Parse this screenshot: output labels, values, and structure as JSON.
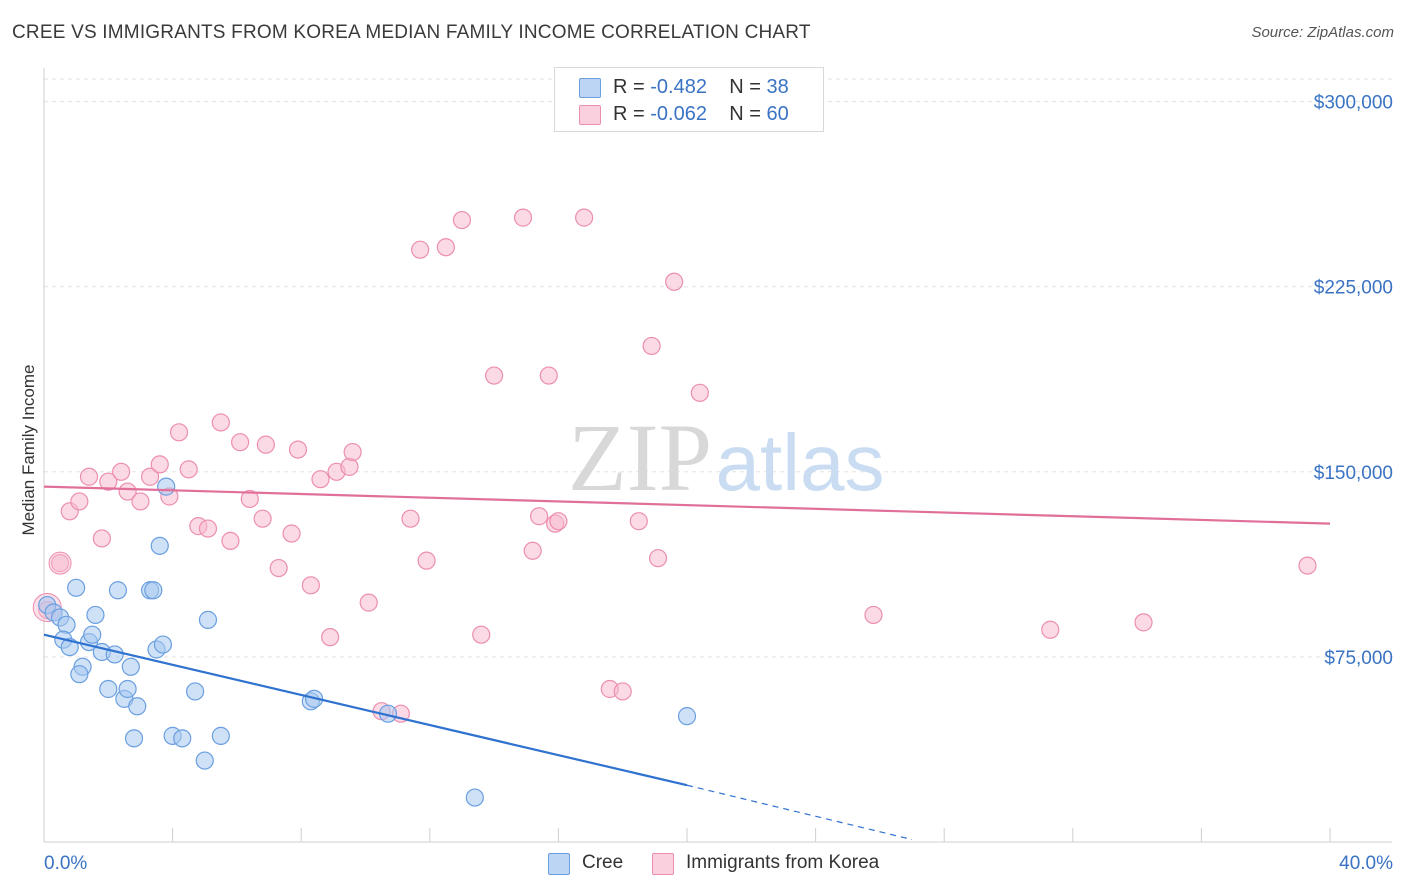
{
  "title": "CREE VS IMMIGRANTS FROM KOREA MEDIAN FAMILY INCOME CORRELATION CHART",
  "source": "Source: ZipAtlas.com",
  "colors": {
    "blue_fill": "#a8c8f0",
    "blue_stroke": "#6a9fe0",
    "blue_line": "#2f72cf",
    "pink_fill": "#f7bcd0",
    "pink_stroke": "#ec8eb0",
    "pink_line": "#e0709a",
    "tick_label": "#3a73c4",
    "grid": "#e3e3e3"
  },
  "legend": {
    "rows": [
      {
        "r_label": "R = ",
        "r_value": "-0.482",
        "n_label": "N = ",
        "n_value": "38"
      },
      {
        "r_label": "R = ",
        "r_value": "-0.062",
        "n_label": "N = ",
        "n_value": "60"
      }
    ]
  },
  "watermark": {
    "part1": "ZIP",
    "part2": "atlas"
  },
  "chart_data": {
    "type": "scatter",
    "title": "CREE VS IMMIGRANTS FROM KOREA MEDIAN FAMILY INCOME CORRELATION CHART",
    "xlabel": "",
    "ylabel": "Median Family Income",
    "xlim": [
      0,
      40
    ],
    "ylim": [
      0,
      312000
    ],
    "x_tick_labels": [
      "0.0%",
      "40.0%"
    ],
    "y_ticks": [
      75000,
      150000,
      225000,
      300000
    ],
    "y_tick_labels": [
      "$75,000",
      "$150,000",
      "$225,000",
      "$300,000"
    ],
    "grid": true,
    "legend_position": "top-center",
    "series": [
      {
        "name": "Cree",
        "color": "#a8c8f0",
        "r": -0.482,
        "n": 38,
        "trend": {
          "x0": 0,
          "y0": 84000,
          "x1": 20,
          "y1": 23000,
          "dash_to_x": 27,
          "dash_to_y": 1000
        },
        "points": [
          [
            0.1,
            96000
          ],
          [
            0.3,
            93000
          ],
          [
            0.5,
            91000
          ],
          [
            0.7,
            88000
          ],
          [
            0.6,
            82000
          ],
          [
            0.8,
            79000
          ],
          [
            1.0,
            103000
          ],
          [
            1.2,
            71000
          ],
          [
            1.1,
            68000
          ],
          [
            1.4,
            81000
          ],
          [
            1.5,
            84000
          ],
          [
            1.6,
            92000
          ],
          [
            1.8,
            77000
          ],
          [
            2.0,
            62000
          ],
          [
            2.2,
            76000
          ],
          [
            2.3,
            102000
          ],
          [
            2.5,
            58000
          ],
          [
            2.6,
            62000
          ],
          [
            2.7,
            71000
          ],
          [
            2.8,
            42000
          ],
          [
            2.9,
            55000
          ],
          [
            3.3,
            102000
          ],
          [
            3.4,
            102000
          ],
          [
            3.5,
            78000
          ],
          [
            3.6,
            120000
          ],
          [
            3.7,
            80000
          ],
          [
            3.8,
            144000
          ],
          [
            4.0,
            43000
          ],
          [
            4.3,
            42000
          ],
          [
            4.7,
            61000
          ],
          [
            5.0,
            33000
          ],
          [
            5.1,
            90000
          ],
          [
            5.5,
            43000
          ],
          [
            8.3,
            57000
          ],
          [
            8.4,
            58000
          ],
          [
            10.7,
            52000
          ],
          [
            13.4,
            18000
          ],
          [
            20.0,
            51000
          ]
        ]
      },
      {
        "name": "Immigrants from Korea",
        "color": "#f7bcd0",
        "r": -0.062,
        "n": 60,
        "trend": {
          "x0": 0,
          "y0": 144000,
          "x1": 40,
          "y1": 129000
        },
        "points": [
          [
            0.1,
            94000
          ],
          [
            0.5,
            113000
          ],
          [
            0.8,
            134000
          ],
          [
            1.1,
            138000
          ],
          [
            1.4,
            148000
          ],
          [
            1.8,
            123000
          ],
          [
            2.0,
            146000
          ],
          [
            2.4,
            150000
          ],
          [
            2.6,
            142000
          ],
          [
            3.0,
            138000
          ],
          [
            3.3,
            148000
          ],
          [
            3.6,
            153000
          ],
          [
            3.9,
            140000
          ],
          [
            4.2,
            166000
          ],
          [
            4.5,
            151000
          ],
          [
            4.8,
            128000
          ],
          [
            5.1,
            127000
          ],
          [
            5.5,
            170000
          ],
          [
            5.8,
            122000
          ],
          [
            6.1,
            162000
          ],
          [
            6.4,
            139000
          ],
          [
            6.8,
            131000
          ],
          [
            6.9,
            161000
          ],
          [
            7.3,
            111000
          ],
          [
            7.7,
            125000
          ],
          [
            7.9,
            159000
          ],
          [
            8.3,
            104000
          ],
          [
            8.6,
            147000
          ],
          [
            8.9,
            83000
          ],
          [
            9.1,
            150000
          ],
          [
            9.5,
            152000
          ],
          [
            9.6,
            158000
          ],
          [
            10.1,
            97000
          ],
          [
            10.5,
            53000
          ],
          [
            11.1,
            52000
          ],
          [
            11.4,
            131000
          ],
          [
            11.7,
            240000
          ],
          [
            11.9,
            114000
          ],
          [
            12.5,
            241000
          ],
          [
            13.0,
            252000
          ],
          [
            13.6,
            84000
          ],
          [
            14.0,
            189000
          ],
          [
            14.9,
            253000
          ],
          [
            15.2,
            118000
          ],
          [
            15.4,
            132000
          ],
          [
            15.7,
            189000
          ],
          [
            15.9,
            129000
          ],
          [
            16.0,
            130000
          ],
          [
            16.8,
            253000
          ],
          [
            17.6,
            62000
          ],
          [
            18.0,
            61000
          ],
          [
            18.5,
            130000
          ],
          [
            18.9,
            201000
          ],
          [
            19.1,
            115000
          ],
          [
            19.6,
            227000
          ],
          [
            20.4,
            182000
          ],
          [
            25.8,
            92000
          ],
          [
            31.3,
            86000
          ],
          [
            34.2,
            89000
          ],
          [
            39.3,
            112000
          ]
        ]
      }
    ]
  }
}
